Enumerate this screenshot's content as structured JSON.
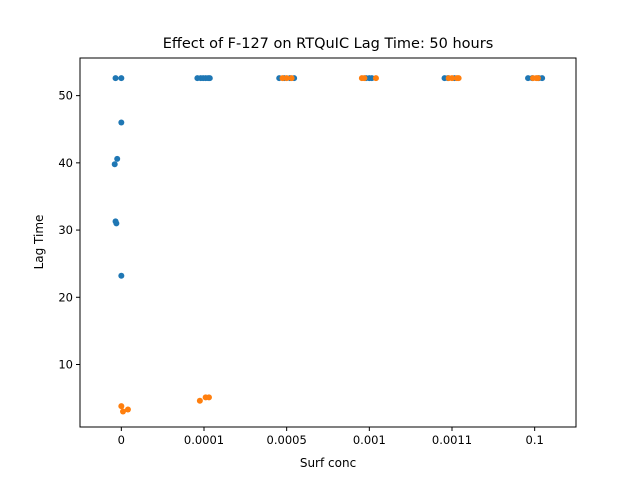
{
  "chart_data": {
    "type": "scatter",
    "title": "Effect of F-127 on RTQuIC Lag Time: 50 hours",
    "xlabel": "Surf conc",
    "ylabel": "Lag Time",
    "categories": [
      "0",
      "0.0001",
      "0.0005",
      "0.001",
      "0.0011",
      "0.1"
    ],
    "ylim": [
      0.7,
      55.6
    ],
    "yticks": [
      10,
      20,
      30,
      40,
      50
    ],
    "grid": false,
    "legend": "none",
    "series": [
      {
        "color": "#1f77b4",
        "points": [
          {
            "category": "0",
            "jitter": -0.07,
            "y": 52.6
          },
          {
            "category": "0",
            "jitter": 0.0,
            "y": 52.6
          },
          {
            "category": "0",
            "jitter": 0.0,
            "y": 46.0
          },
          {
            "category": "0",
            "jitter": -0.05,
            "y": 40.6
          },
          {
            "category": "0",
            "jitter": -0.08,
            "y": 39.8
          },
          {
            "category": "0",
            "jitter": -0.07,
            "y": 31.3
          },
          {
            "category": "0",
            "jitter": -0.06,
            "y": 31.0
          },
          {
            "category": "0",
            "jitter": 0.0,
            "y": 23.2
          },
          {
            "category": "0.0001",
            "jitter": -0.08,
            "y": 52.6
          },
          {
            "category": "0.0001",
            "jitter": -0.04,
            "y": 52.6
          },
          {
            "category": "0.0001",
            "jitter": -0.01,
            "y": 52.6
          },
          {
            "category": "0.0001",
            "jitter": 0.02,
            "y": 52.6
          },
          {
            "category": "0.0001",
            "jitter": 0.05,
            "y": 52.6
          },
          {
            "category": "0.0001",
            "jitter": 0.07,
            "y": 52.6
          },
          {
            "category": "0.0005",
            "jitter": -0.09,
            "y": 52.6
          },
          {
            "category": "0.0005",
            "jitter": -0.03,
            "y": 52.6
          },
          {
            "category": "0.0005",
            "jitter": 0.04,
            "y": 52.6
          },
          {
            "category": "0.0005",
            "jitter": 0.09,
            "y": 52.6
          },
          {
            "category": "0.001",
            "jitter": -0.04,
            "y": 52.6
          },
          {
            "category": "0.001",
            "jitter": 0.0,
            "y": 52.6
          },
          {
            "category": "0.001",
            "jitter": 0.03,
            "y": 52.6
          },
          {
            "category": "0.0011",
            "jitter": -0.09,
            "y": 52.6
          },
          {
            "category": "0.0011",
            "jitter": -0.05,
            "y": 52.6
          },
          {
            "category": "0.0011",
            "jitter": 0.03,
            "y": 52.6
          },
          {
            "category": "0.1",
            "jitter": -0.08,
            "y": 52.6
          },
          {
            "category": "0.1",
            "jitter": -0.03,
            "y": 52.6
          },
          {
            "category": "0.1",
            "jitter": 0.05,
            "y": 52.6
          },
          {
            "category": "0.1",
            "jitter": 0.09,
            "y": 52.6
          }
        ]
      },
      {
        "color": "#ff7f0e",
        "points": [
          {
            "category": "0",
            "jitter": 0.0,
            "y": 3.8
          },
          {
            "category": "0",
            "jitter": 0.02,
            "y": 3.0
          },
          {
            "category": "0",
            "jitter": 0.08,
            "y": 3.3
          },
          {
            "category": "0.0001",
            "jitter": -0.05,
            "y": 4.6
          },
          {
            "category": "0.0001",
            "jitter": 0.02,
            "y": 5.1
          },
          {
            "category": "0.0001",
            "jitter": 0.06,
            "y": 5.1
          },
          {
            "category": "0.0005",
            "jitter": -0.05,
            "y": 52.6
          },
          {
            "category": "0.0005",
            "jitter": 0.0,
            "y": 52.6
          },
          {
            "category": "0.0005",
            "jitter": 0.06,
            "y": 52.6
          },
          {
            "category": "0.001",
            "jitter": -0.09,
            "y": 52.6
          },
          {
            "category": "0.001",
            "jitter": -0.06,
            "y": 52.6
          },
          {
            "category": "0.001",
            "jitter": 0.08,
            "y": 52.6
          },
          {
            "category": "0.0011",
            "jitter": -0.04,
            "y": 52.6
          },
          {
            "category": "0.0011",
            "jitter": 0.0,
            "y": 52.6
          },
          {
            "category": "0.0011",
            "jitter": 0.06,
            "y": 52.6
          },
          {
            "category": "0.0011",
            "jitter": 0.08,
            "y": 52.6
          },
          {
            "category": "0.1",
            "jitter": -0.02,
            "y": 52.6
          },
          {
            "category": "0.1",
            "jitter": 0.02,
            "y": 52.6
          },
          {
            "category": "0.1",
            "jitter": 0.04,
            "y": 52.6
          }
        ]
      }
    ]
  }
}
